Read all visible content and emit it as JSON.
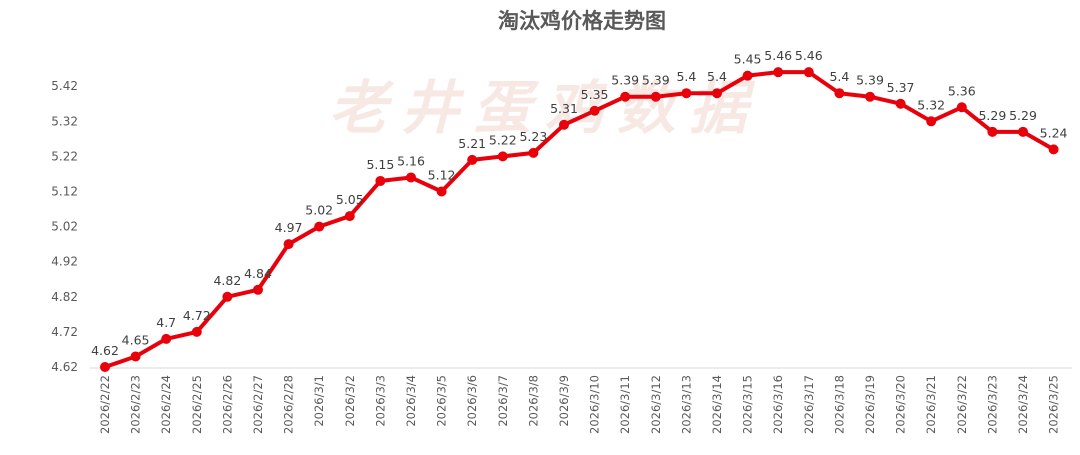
{
  "chart_data": {
    "type": "line",
    "title": "淘汰鸡价格走势图",
    "watermark": "老井蛋鸡数据",
    "xlabel": "",
    "ylabel": "",
    "categories": [
      "2026/2/22",
      "2026/2/23",
      "2026/2/24",
      "2026/2/25",
      "2026/2/26",
      "2026/2/27",
      "2026/2/28",
      "2026/3/1",
      "2026/3/2",
      "2026/3/3",
      "2026/3/4",
      "2026/3/5",
      "2026/3/6",
      "2026/3/7",
      "2026/3/8",
      "2026/3/9",
      "2026/3/10",
      "2026/3/11",
      "2026/3/12",
      "2026/3/13",
      "2026/3/14",
      "2026/3/15",
      "2026/3/16",
      "2026/3/17",
      "2026/3/18",
      "2026/3/19",
      "2026/3/20",
      "2026/3/21",
      "2026/3/22",
      "2026/3/23",
      "2026/3/24",
      "2026/3/25"
    ],
    "values": [
      4.62,
      4.65,
      4.7,
      4.72,
      4.82,
      4.84,
      4.97,
      5.02,
      5.05,
      5.15,
      5.16,
      5.12,
      5.21,
      5.22,
      5.23,
      5.31,
      5.35,
      5.39,
      5.39,
      5.4,
      5.4,
      5.45,
      5.46,
      5.46,
      5.4,
      5.39,
      5.37,
      5.32,
      5.36,
      5.29,
      5.29,
      5.24
    ],
    "yticks": [
      "4.62",
      "4.72",
      "4.82",
      "4.92",
      "5.02",
      "5.12",
      "5.22",
      "5.32",
      "5.42"
    ],
    "ylim": [
      4.62,
      5.47
    ],
    "grid": false,
    "legend": "none",
    "line_color": "#e8000b",
    "marker_color": "#e8000b"
  }
}
